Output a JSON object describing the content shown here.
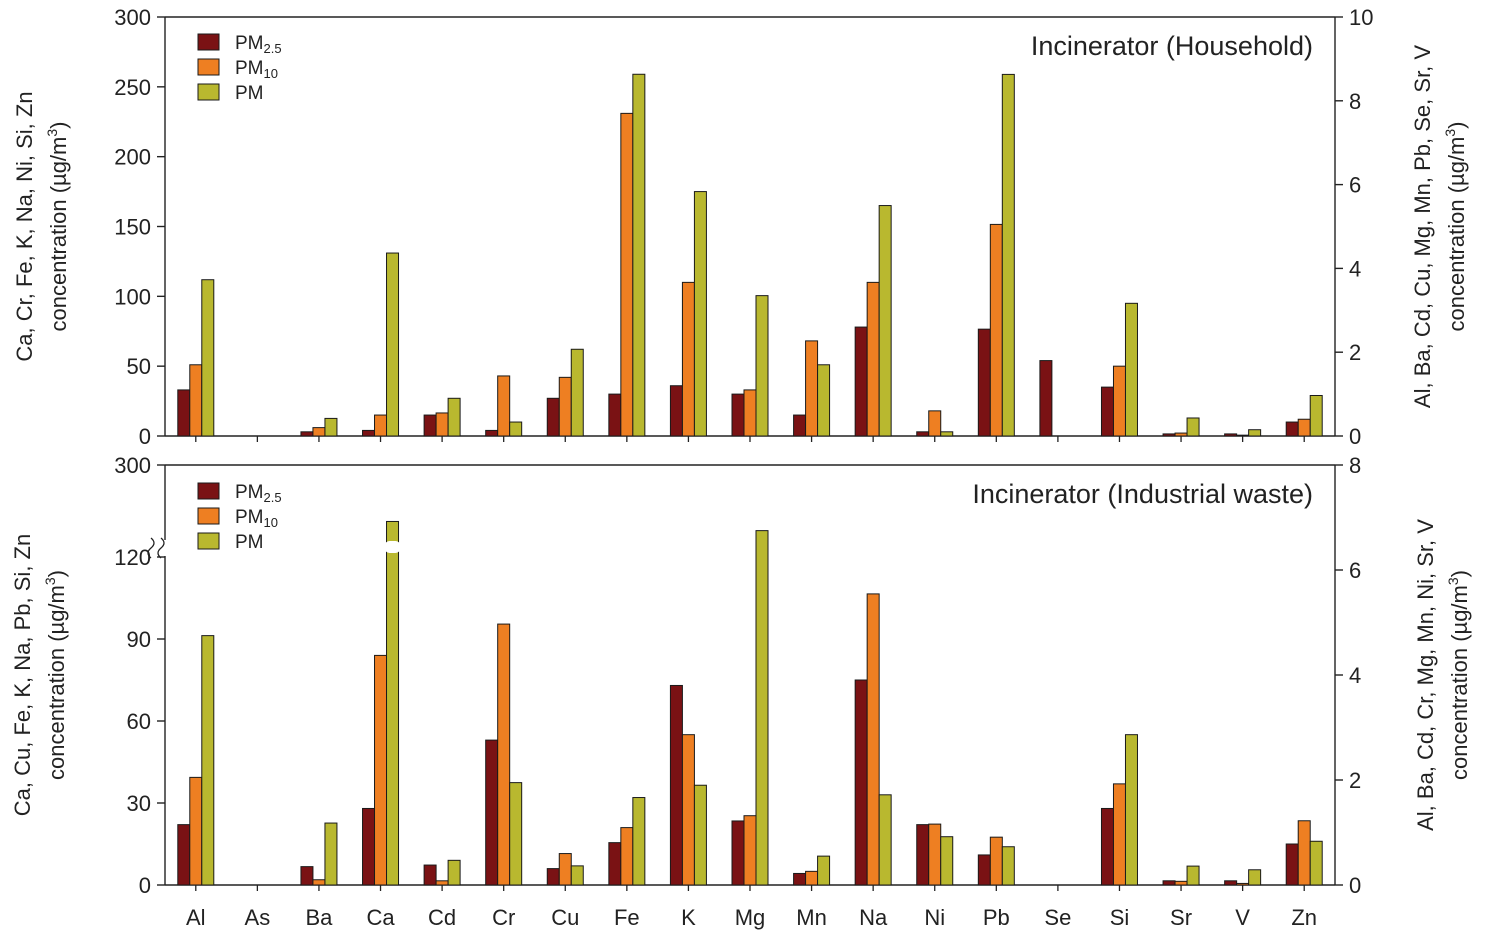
{
  "colors": {
    "pm25": "#7a1214",
    "pm10": "#ee7f22",
    "pm": "#b9b82f"
  },
  "categories": [
    "Al",
    "As",
    "Ba",
    "Ca",
    "Cd",
    "Cr",
    "Cu",
    "Fe",
    "K",
    "Mg",
    "Mn",
    "Na",
    "Ni",
    "Pb",
    "Se",
    "Si",
    "Sr",
    "V",
    "Zn"
  ],
  "legend": [
    {
      "main": "PM",
      "sub": "2.5"
    },
    {
      "main": "PM",
      "sub": "10"
    },
    {
      "main": "PM",
      "sub": ""
    }
  ],
  "chart_data": [
    {
      "type": "bar",
      "title": "Incinerator (Household)",
      "ylabel_left": "Ca, Cr, Fe, K, Na, Ni, Si, Zn concentration (µg/m³)",
      "ylabel_left_lines": [
        "Ca, Cr, Fe, K, Na, Ni, Si, Zn",
        "concentration (µg/m",
        "3",
        ")"
      ],
      "ylabel_right": "Al, Ba, Cd, Cu, Mg, Mn, Pb, Se, Sr, V concentration (µg/m³)",
      "ylabel_right_lines": [
        "Al, Ba, Cd, Cu, Mg, Mn, Pb, Se, Sr, V",
        "concentration (µg/m",
        "3",
        ")"
      ],
      "ylim_left": [
        0,
        300
      ],
      "yticks_left": [
        0,
        50,
        100,
        150,
        200,
        250,
        300
      ],
      "ylim_right": [
        0,
        10
      ],
      "yticks_right": [
        0,
        2,
        4,
        6,
        8,
        10
      ],
      "categories": [
        "Al",
        "As",
        "Ba",
        "Ca",
        "Cd",
        "Cr",
        "Cu",
        "Fe",
        "K",
        "Mg",
        "Mn",
        "Na",
        "Ni",
        "Pb",
        "Se",
        "Si",
        "Sr",
        "V",
        "Zn"
      ],
      "axis_by_category": [
        "right",
        "right",
        "right",
        "left",
        "right",
        "left",
        "right",
        "left",
        "left",
        "right",
        "right",
        "left",
        "left",
        "right",
        "right",
        "left",
        "right",
        "right",
        "left"
      ],
      "series": [
        {
          "name": "PM2.5",
          "values": [
            1.1,
            0,
            0.1,
            4,
            0.5,
            4,
            0.9,
            30,
            36,
            1.0,
            0.5,
            78,
            3,
            2.55,
            1.8,
            35,
            0.05,
            0.05,
            10
          ]
        },
        {
          "name": "PM10",
          "values": [
            1.7,
            0,
            0.2,
            15,
            0.55,
            43,
            1.4,
            231,
            110,
            1.1,
            2.27,
            110,
            18,
            5.05,
            0,
            50,
            0.07,
            0.02,
            12
          ]
        },
        {
          "name": "PM",
          "values": [
            3.73,
            0,
            0.42,
            131,
            0.9,
            10,
            2.07,
            259,
            175,
            3.35,
            1.7,
            165,
            3,
            8.63,
            0,
            95,
            0.43,
            0.15,
            29
          ]
        }
      ]
    },
    {
      "type": "bar",
      "title": "Incinerator (Industrial waste)",
      "ylabel_left": "Ca, Cu, Fe, K, Na, Pb, Si, Zn concentration (µg/m³)",
      "ylabel_left_lines": [
        "Ca, Cu, Fe, K, Na, Pb, Si, Zn",
        "concentration (µg/m",
        "3",
        ")"
      ],
      "ylabel_right": "Al, Ba, Cd, Cr, Mg, Mn, Ni, Sr, V concentration (µg/m³)",
      "ylabel_right_lines": [
        "Al, Ba, Cd, Cr, Mg, Mn, Ni, Sr, V",
        "concentration (µg/m",
        "3",
        ")"
      ],
      "ylim_left": [
        0,
        120
      ],
      "yticks_left": [
        0,
        30,
        60,
        90,
        120,
        300
      ],
      "axis_break": "left axis broken between 120 and 300",
      "ylim_right": [
        0,
        8
      ],
      "yticks_right": [
        0,
        2,
        4,
        6,
        8
      ],
      "categories": [
        "Al",
        "As",
        "Ba",
        "Ca",
        "Cd",
        "Cr",
        "Cu",
        "Fe",
        "K",
        "Mg",
        "Mn",
        "Na",
        "Ni",
        "Pb",
        "Se",
        "Si",
        "Sr",
        "V",
        "Zn"
      ],
      "axis_by_category": [
        "right",
        "right",
        "right",
        "left",
        "right",
        "right",
        "left",
        "left",
        "left",
        "right",
        "right",
        "left",
        "right",
        "left",
        "right",
        "left",
        "right",
        "right",
        "left"
      ],
      "series": [
        {
          "name": "PM2.5",
          "values": [
            1.15,
            0,
            0.35,
            28,
            0.38,
            2.76,
            6,
            15.5,
            73,
            1.22,
            0.22,
            75,
            1.15,
            11,
            0,
            28,
            0.08,
            0.08,
            15
          ]
        },
        {
          "name": "PM10",
          "values": [
            2.05,
            0,
            0.1,
            84,
            0.08,
            4.97,
            11.5,
            21,
            55,
            1.32,
            0.26,
            106.5,
            1.16,
            17.5,
            0,
            37,
            0.07,
            0.03,
            23.5
          ]
        },
        {
          "name": "PM",
          "values": [
            4.75,
            0,
            1.18,
            133,
            0.47,
            1.95,
            7,
            32,
            36.5,
            6.75,
            0.55,
            33,
            0.92,
            14,
            0,
            55,
            0.36,
            0.29,
            16
          ]
        }
      ]
    }
  ]
}
